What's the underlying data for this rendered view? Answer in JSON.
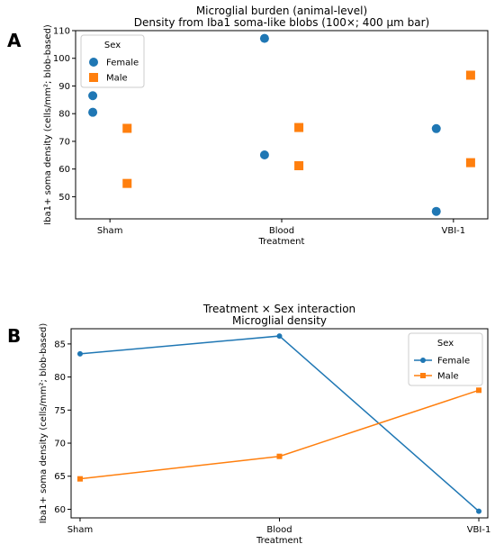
{
  "panel_a": {
    "letter": "A"
  },
  "panel_b": {
    "letter": "B"
  },
  "chart_data": [
    {
      "type": "scatter",
      "title": "Microglial burden (animal-level)",
      "subtitle": "Density from Iba1 soma-like blobs (100×; 400 µm bar)",
      "xlabel": "Treatment",
      "ylabel": "Iba1+ soma density (cells/mm²; blob-based)",
      "categories": [
        "Sham",
        "Blood",
        "VBI-1"
      ],
      "ylim": [
        42,
        110
      ],
      "yticks": [
        50,
        60,
        70,
        80,
        90,
        100,
        110
      ],
      "grid": false,
      "legend": {
        "title": "Sex",
        "placement": "top-left"
      },
      "series": [
        {
          "name": "Female",
          "color": "#1f77b4",
          "marker": "circle",
          "offset": -0.1,
          "points": [
            {
              "category": "Sham",
              "y": 86.5
            },
            {
              "category": "Sham",
              "y": 80.5
            },
            {
              "category": "Blood",
              "y": 107.2
            },
            {
              "category": "Blood",
              "y": 65.1
            },
            {
              "category": "VBI-1",
              "y": 74.6
            },
            {
              "category": "VBI-1",
              "y": 44.7
            }
          ]
        },
        {
          "name": "Male",
          "color": "#ff7f0e",
          "marker": "square",
          "offset": 0.1,
          "points": [
            {
              "category": "Sham",
              "y": 74.7
            },
            {
              "category": "Sham",
              "y": 54.8
            },
            {
              "category": "Blood",
              "y": 75.0
            },
            {
              "category": "Blood",
              "y": 61.2
            },
            {
              "category": "VBI-1",
              "y": 93.9
            },
            {
              "category": "VBI-1",
              "y": 62.3
            }
          ]
        }
      ]
    },
    {
      "type": "line",
      "title": "Treatment × Sex interaction",
      "subtitle": "Microglial density",
      "xlabel": "Treatment",
      "ylabel": "Iba1+ soma density (cells/mm²; blob-based)",
      "categories": [
        "Sham",
        "Blood",
        "VBI-1"
      ],
      "ylim": [
        58.7,
        87.3
      ],
      "yticks": [
        60,
        65,
        70,
        75,
        80,
        85
      ],
      "grid": false,
      "legend": {
        "title": "Sex",
        "placement": "top-right"
      },
      "series": [
        {
          "name": "Female",
          "color": "#1f77b4",
          "marker": "circle",
          "values": [
            83.5,
            86.2,
            59.7
          ]
        },
        {
          "name": "Male",
          "color": "#ff7f0e",
          "marker": "square",
          "values": [
            64.6,
            68.0,
            78.0
          ]
        }
      ]
    }
  ]
}
